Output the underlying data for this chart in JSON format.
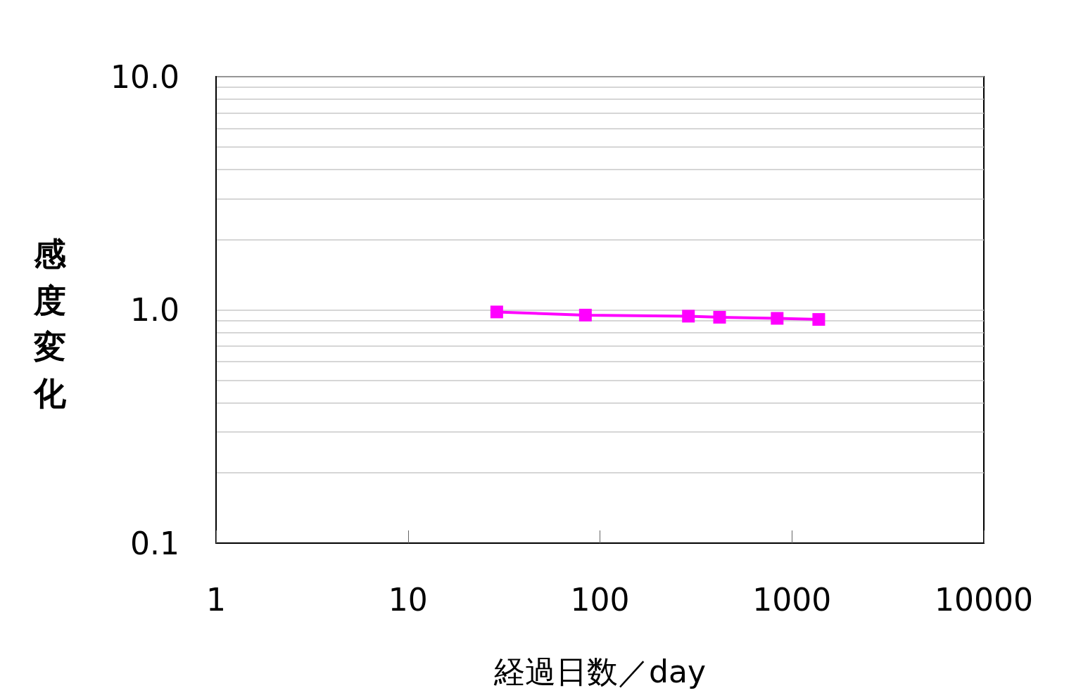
{
  "chart_data": {
    "type": "line",
    "xlabel": "経過日数／day",
    "ylabel": "感度変化",
    "x": [
      29,
      84,
      289,
      420,
      838,
      1380
    ],
    "series": [
      {
        "color": "#ff00ff",
        "values": [
          0.98,
          0.95,
          0.94,
          0.93,
          0.92,
          0.91
        ]
      }
    ],
    "log": "xy",
    "xlim": [
      1,
      10000
    ],
    "xticks": [
      1,
      10,
      100,
      1000,
      10000
    ],
    "ylim": [
      0.1,
      10
    ],
    "yticks": [
      {
        "value": 0.1,
        "label": "0.1"
      },
      {
        "value": 0.2,
        "label": null
      },
      {
        "value": 0.3,
        "label": null
      },
      {
        "value": 0.4,
        "label": null
      },
      {
        "value": 0.5,
        "label": null
      },
      {
        "value": 0.6,
        "label": null
      },
      {
        "value": 0.7,
        "label": null
      },
      {
        "value": 0.8,
        "label": null
      },
      {
        "value": 0.9,
        "label": null
      },
      {
        "value": 1,
        "label": "1.0"
      },
      {
        "value": 2,
        "label": null
      },
      {
        "value": 3,
        "label": null
      },
      {
        "value": 4,
        "label": null
      },
      {
        "value": 5,
        "label": null
      },
      {
        "value": 6,
        "label": null
      },
      {
        "value": 7,
        "label": null
      },
      {
        "value": 8,
        "label": null
      },
      {
        "value": 9,
        "label": null
      },
      {
        "value": 10,
        "label": "10.0"
      }
    ],
    "grid": "y",
    "marker": "square",
    "line_style": "solid"
  }
}
